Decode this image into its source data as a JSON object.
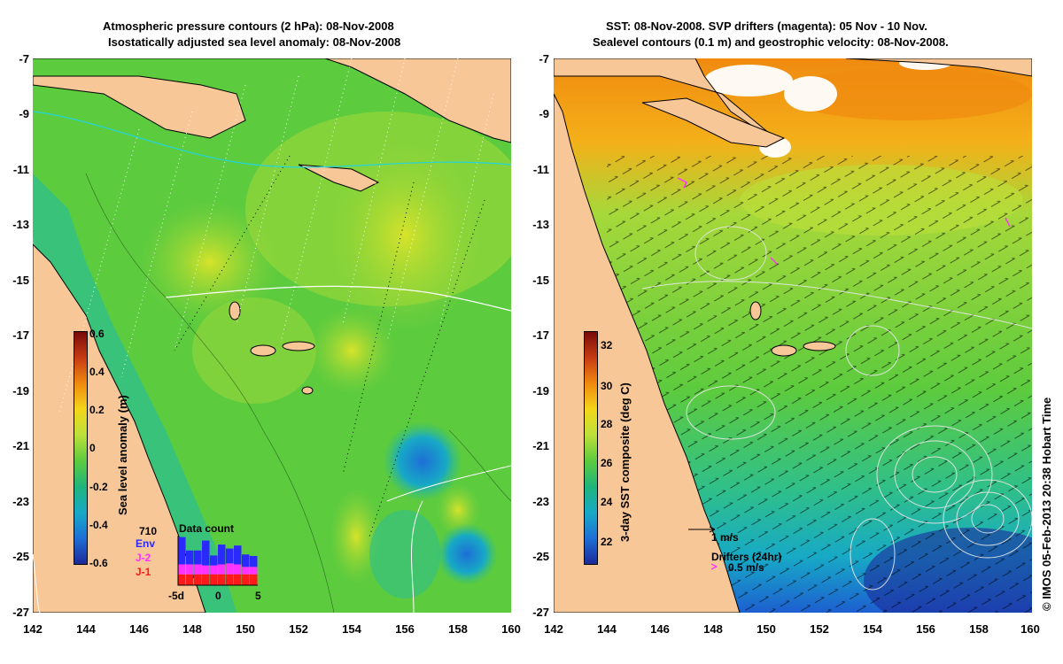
{
  "left": {
    "title_line1": "Atmospheric pressure contours (2 hPa): 08-Nov-2008",
    "title_line2": "Isostatically adjusted sea level anomaly: 08-Nov-2008",
    "colorbar": {
      "label": "Sea level anomaly (m)",
      "ticks": [
        "0.6",
        "0.4",
        "0.2",
        "0",
        "-0.2",
        "-0.4",
        "-0.6"
      ],
      "colors": [
        "#7a0a0a",
        "#c63b12",
        "#f08a10",
        "#f4d619",
        "#bde03a",
        "#5ccb3e",
        "#1fb57c",
        "#17a9c6",
        "#1d6fd6",
        "#1d2a9a"
      ]
    },
    "data_count": {
      "title": "Data count",
      "max_label": "710",
      "series": [
        {
          "name": "Env",
          "color": "#2a2aff"
        },
        {
          "name": "J-2",
          "color": "#ff33ff"
        },
        {
          "name": "J-1",
          "color": "#ff1a1a"
        }
      ],
      "x_ticks": [
        "-5d",
        "0",
        "5"
      ],
      "bars": [
        {
          "j1": 0.22,
          "j2": 0.2,
          "env": 0.55
        },
        {
          "j1": 0.22,
          "j2": 0.2,
          "env": 0.28
        },
        {
          "j1": 0.22,
          "j2": 0.2,
          "env": 0.28
        },
        {
          "j1": 0.22,
          "j2": 0.18,
          "env": 0.5
        },
        {
          "j1": 0.22,
          "j2": 0.18,
          "env": 0.2
        },
        {
          "j1": 0.22,
          "j2": 0.2,
          "env": 0.4
        },
        {
          "j1": 0.22,
          "j2": 0.22,
          "env": 0.3
        },
        {
          "j1": 0.22,
          "j2": 0.2,
          "env": 0.38
        },
        {
          "j1": 0.22,
          "j2": 0.15,
          "env": 0.25
        },
        {
          "j1": 0.22,
          "j2": 0.15,
          "env": 0.22
        }
      ]
    }
  },
  "right": {
    "title_line1": "SST: 08-Nov-2008. SVP drifters (magenta): 05 Nov - 10 Nov.",
    "title_line2": "Sealevel contours (0.1 m) and geostrophic velocity: 08-Nov-2008.",
    "colorbar": {
      "label": "3-day SST composite (deg C)",
      "ticks": [
        "32",
        "30",
        "28",
        "26",
        "24",
        "22"
      ],
      "colors": [
        "#7a0a0a",
        "#c63b12",
        "#f08a10",
        "#f4d619",
        "#bde03a",
        "#5ccb3e",
        "#1fb57c",
        "#17a9c6",
        "#1d6fd6",
        "#1d2a9a"
      ]
    },
    "velocity_scale_label": "1 m/s",
    "drifters_label": "Drifters (24hr)",
    "drifter_speed_label": "0.5 m/s"
  },
  "axes": {
    "y_ticks": [
      "-7",
      "-9",
      "-11",
      "-13",
      "-15",
      "-17",
      "-19",
      "-21",
      "-23",
      "-25",
      "-27"
    ],
    "x_ticks": [
      "142",
      "144",
      "146",
      "148",
      "150",
      "152",
      "154",
      "156",
      "158",
      "160"
    ]
  },
  "credit": "© IMOS 05-Feb-2013 20:38 Hobart Time",
  "colors": {
    "land": "#f7c797",
    "ocean_green": "#5ccb3e",
    "contour": "#ffffff"
  }
}
